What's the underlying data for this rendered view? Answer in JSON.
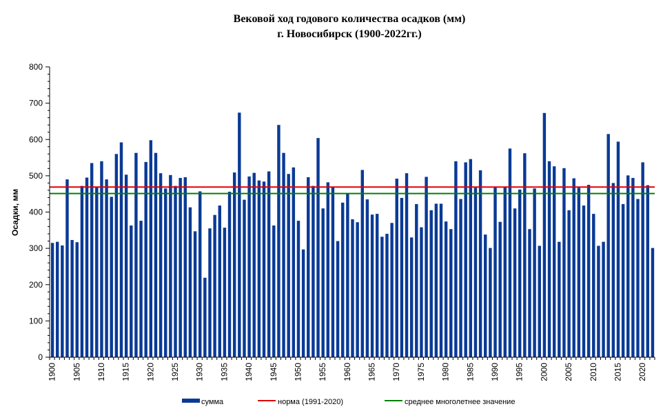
{
  "colors": {
    "bar": "#0a3a96",
    "norm": "#e00000",
    "mean": "#008000",
    "axis": "#000000"
  },
  "chart_data": {
    "type": "bar",
    "title_line1": "Вековой ход годового количества осадков (мм)",
    "title_line2": "г. Новосибирск (1900-2022гг.)",
    "ylabel": "Осадки, мм",
    "xlabel": "",
    "ylim": [
      0,
      800
    ],
    "yticks": [
      0,
      100,
      200,
      300,
      400,
      500,
      600,
      700,
      800
    ],
    "xtick_labels": [
      "1900",
      "1905",
      "1910",
      "1915",
      "1920",
      "1925",
      "1930",
      "1935",
      "1940",
      "1945",
      "1950",
      "1955",
      "1960",
      "1965",
      "1970",
      "1975",
      "1980",
      "1985",
      "1990",
      "1995",
      "2000",
      "2005",
      "2010",
      "2015",
      "2020"
    ],
    "x_start": 1900,
    "grid": false,
    "legend_position": "bottom",
    "series": [
      {
        "name": "сумма",
        "type": "bar",
        "values": [
          315,
          318,
          308,
          490,
          323,
          317,
          472,
          495,
          535,
          469,
          540,
          490,
          442,
          560,
          592,
          503,
          363,
          563,
          376,
          538,
          598,
          563,
          507,
          465,
          502,
          472,
          494,
          496,
          413,
          347,
          457,
          219,
          355,
          392,
          418,
          357,
          456,
          509,
          674,
          434,
          498,
          508,
          487,
          484,
          512,
          363,
          640,
          563,
          505,
          523,
          376,
          297,
          496,
          472,
          604,
          410,
          482,
          469,
          320,
          426,
          450,
          380,
          372,
          516,
          435,
          393,
          395,
          332,
          340,
          370,
          492,
          439,
          507,
          330,
          422,
          358,
          497,
          405,
          423,
          423,
          374,
          353,
          540,
          436,
          537,
          546,
          467,
          515,
          338,
          301,
          470,
          373,
          470,
          575,
          410,
          462,
          562,
          353,
          465,
          307,
          673,
          540,
          526,
          318,
          521,
          405,
          493,
          467,
          418,
          475,
          395,
          307,
          318,
          615,
          480,
          594,
          422,
          501,
          494,
          436,
          537,
          474,
          301
        ]
      },
      {
        "name": "норма (1991-2020)",
        "type": "line",
        "value": 469
      },
      {
        "name": "среднее многолетнее значение",
        "type": "line",
        "value": 451
      }
    ]
  }
}
